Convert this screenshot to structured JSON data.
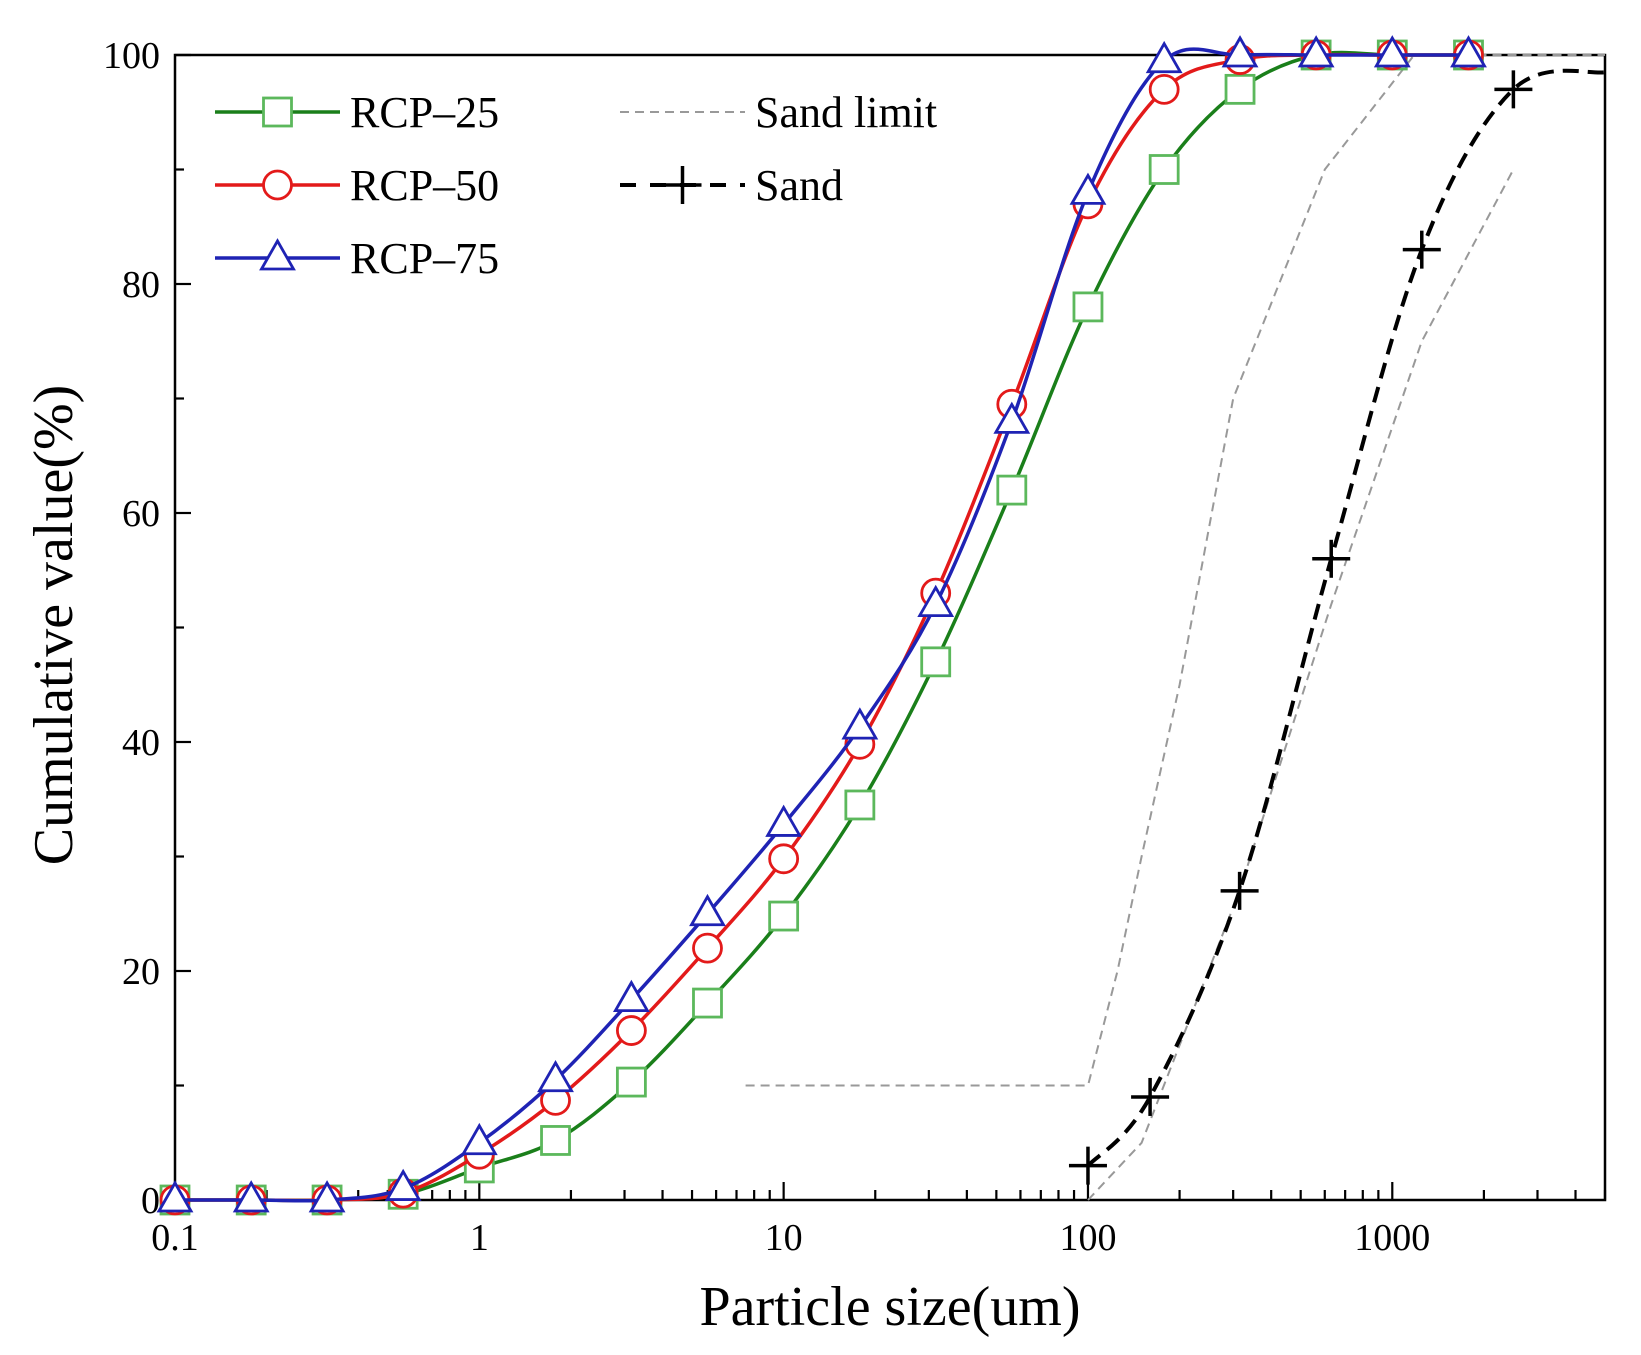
{
  "chart_data": {
    "type": "line",
    "title": "",
    "xlabel": "Particle size(um)",
    "ylabel": "Cumulative value(%)",
    "x_scale": "log",
    "xlim": [
      0.1,
      5000
    ],
    "ylim": [
      0,
      100
    ],
    "x_ticks": [
      {
        "value": 0.1,
        "label": "0.1"
      },
      {
        "value": 1,
        "label": "1"
      },
      {
        "value": 10,
        "label": "10"
      },
      {
        "value": 100,
        "label": "100"
      },
      {
        "value": 1000,
        "label": "1000"
      }
    ],
    "y_ticks": [
      {
        "value": 0,
        "label": "0"
      },
      {
        "value": 20,
        "label": "20"
      },
      {
        "value": 40,
        "label": "40"
      },
      {
        "value": 60,
        "label": "60"
      },
      {
        "value": 80,
        "label": "80"
      },
      {
        "value": 100,
        "label": "100"
      }
    ],
    "legend_position": "top-left",
    "series": [
      {
        "name": "RCP–25",
        "color": "#1a7f1a",
        "marker": "square",
        "line_style": "solid",
        "points": [
          [
            0.1,
            0
          ],
          [
            0.178,
            0
          ],
          [
            0.316,
            0
          ],
          [
            0.562,
            0.5
          ],
          [
            1,
            2.8
          ],
          [
            1.78,
            5.2
          ],
          [
            3.16,
            10.3
          ],
          [
            5.62,
            17.2
          ],
          [
            10,
            24.8
          ],
          [
            17.8,
            34.5
          ],
          [
            31.6,
            47
          ],
          [
            56.2,
            62
          ],
          [
            100,
            78
          ],
          [
            178,
            90
          ],
          [
            316,
            97
          ],
          [
            562,
            100
          ],
          [
            1000,
            100
          ],
          [
            1780,
            100
          ]
        ]
      },
      {
        "name": "RCP–50",
        "color": "#e31a1a",
        "marker": "circle",
        "line_style": "solid",
        "points": [
          [
            0.1,
            0
          ],
          [
            0.178,
            0
          ],
          [
            0.316,
            0
          ],
          [
            0.562,
            0.6
          ],
          [
            1,
            4
          ],
          [
            1.78,
            8.7
          ],
          [
            3.16,
            14.8
          ],
          [
            5.62,
            22
          ],
          [
            10,
            29.8
          ],
          [
            17.8,
            39.8
          ],
          [
            31.6,
            53
          ],
          [
            56.2,
            69.5
          ],
          [
            100,
            87
          ],
          [
            178,
            97
          ],
          [
            316,
            99.6
          ],
          [
            562,
            100
          ],
          [
            1000,
            100
          ],
          [
            1780,
            100
          ]
        ]
      },
      {
        "name": "RCP–75",
        "color": "#1f23b4",
        "marker": "triangle",
        "line_style": "solid",
        "points": [
          [
            0.1,
            0
          ],
          [
            0.178,
            0
          ],
          [
            0.316,
            0
          ],
          [
            0.562,
            1
          ],
          [
            1,
            5
          ],
          [
            1.78,
            10.5
          ],
          [
            3.16,
            17.5
          ],
          [
            5.62,
            25
          ],
          [
            10,
            32.8
          ],
          [
            17.8,
            41.3
          ],
          [
            31.6,
            52
          ],
          [
            56.2,
            68
          ],
          [
            100,
            88
          ],
          [
            178,
            99.5
          ],
          [
            316,
            100
          ],
          [
            562,
            100
          ],
          [
            1000,
            100
          ],
          [
            1780,
            100
          ]
        ]
      },
      {
        "name": "Sand limit",
        "color": "#999999",
        "marker": "none",
        "line_style": "dashed-thin",
        "lines": [
          [
            [
              7.5,
              10
            ],
            [
              100,
              10
            ],
            [
              125,
              20
            ],
            [
              150,
              30
            ],
            [
              200,
              45
            ],
            [
              300,
              70
            ],
            [
              600,
              90
            ],
            [
              1180,
              100
            ],
            [
              5000,
              100
            ]
          ],
          [
            [
              100,
              0
            ],
            [
              150,
              5
            ],
            [
              315,
              27
            ],
            [
              630,
              52
            ],
            [
              1250,
              75
            ],
            [
              2500,
              90
            ]
          ]
        ]
      },
      {
        "name": "Sand",
        "color": "#000000",
        "marker": "plus",
        "line_style": "dashed-bold",
        "points": [
          [
            100,
            3
          ],
          [
            160,
            9
          ],
          [
            315,
            27
          ],
          [
            630,
            56
          ],
          [
            1250,
            83
          ],
          [
            2500,
            97
          ],
          [
            5000,
            98.5
          ]
        ],
        "marker_points": 6
      }
    ]
  }
}
